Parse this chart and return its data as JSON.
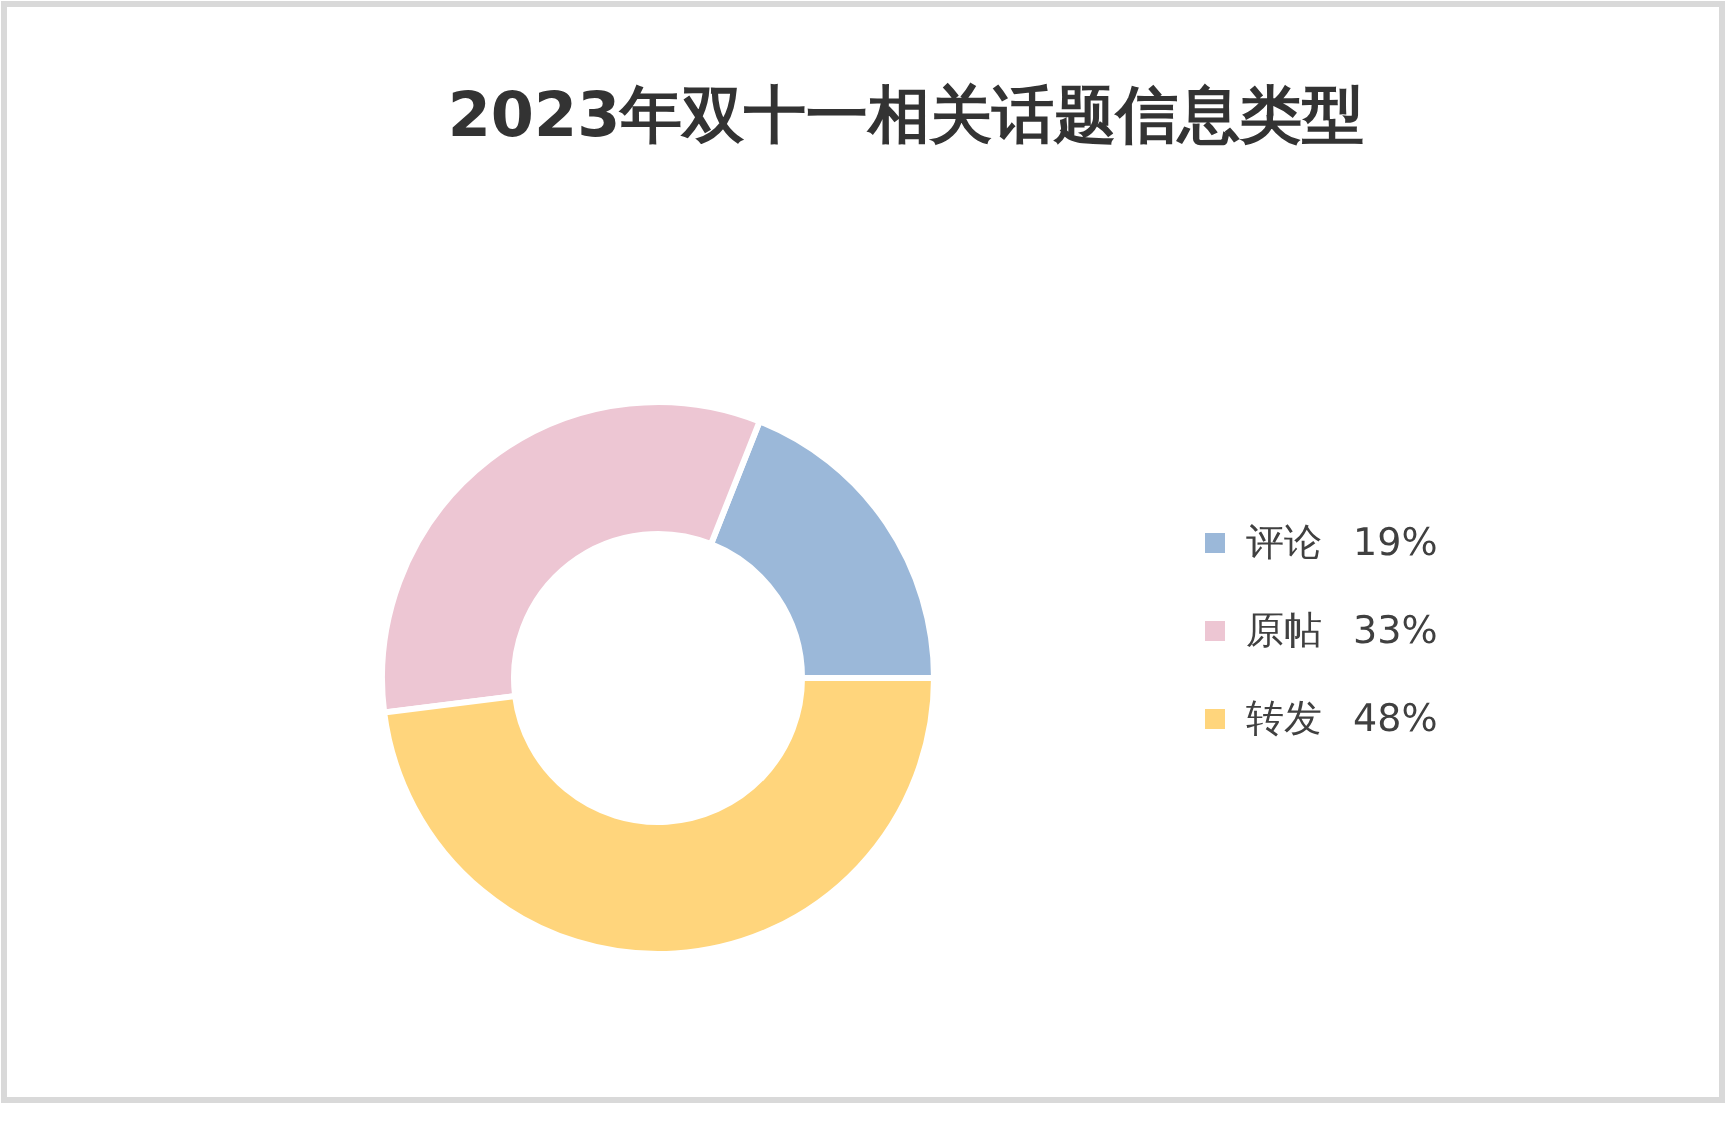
{
  "chart_data": {
    "type": "donut",
    "title": "2023年双十一相关话题信息类型",
    "categories": [
      "评论",
      "原帖",
      "转发"
    ],
    "values": [
      19,
      33,
      48
    ],
    "colors": [
      "#9bb8d9",
      "#edc6d3",
      "#ffd57c"
    ],
    "value_labels": [
      "19%",
      "33%",
      "48%"
    ],
    "legend": "right"
  }
}
